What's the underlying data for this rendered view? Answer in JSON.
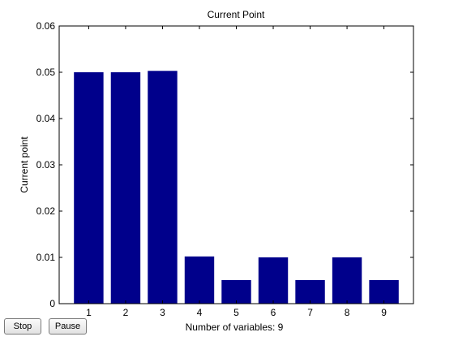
{
  "controls": {
    "stop_label": "Stop",
    "pause_label": "Pause"
  },
  "chart_data": {
    "type": "bar",
    "title": "Current Point",
    "xlabel": "Number of variables: 9",
    "ylabel": "Current point",
    "categories": [
      "1",
      "2",
      "3",
      "4",
      "5",
      "6",
      "7",
      "8",
      "9"
    ],
    "values": [
      0.05,
      0.05,
      0.0503,
      0.0102,
      0.0051,
      0.01,
      0.0051,
      0.01,
      0.0051
    ],
    "ylim": [
      0,
      0.06
    ],
    "yticks": [
      0,
      0.01,
      0.02,
      0.03,
      0.04,
      0.05,
      0.06
    ],
    "ytick_labels": [
      "0",
      "0.01",
      "0.02",
      "0.03",
      "0.04",
      "0.05",
      "0.06"
    ],
    "grid": false,
    "bar_color": "#00008B"
  }
}
